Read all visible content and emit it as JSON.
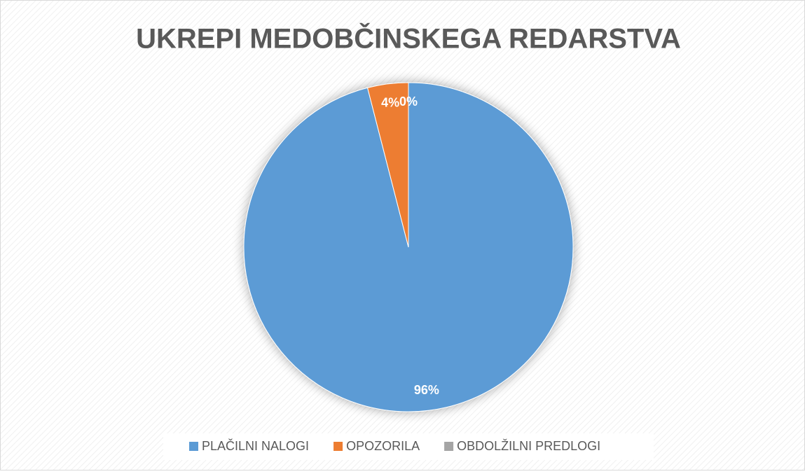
{
  "chart_data": {
    "type": "pie",
    "title": "UKREPI MEDOBČINSKEGA REDARSTVA",
    "categories": [
      "PLAČILNI NALOGI",
      "OPOZORILA",
      "OBDOLŽILNI PREDLOGI"
    ],
    "values": [
      96,
      4,
      0
    ],
    "value_labels": [
      "96%",
      "4%",
      "0%"
    ],
    "colors": [
      "#5b9bd5",
      "#ed7d31",
      "#a5a5a5"
    ],
    "legend": "bottom"
  }
}
